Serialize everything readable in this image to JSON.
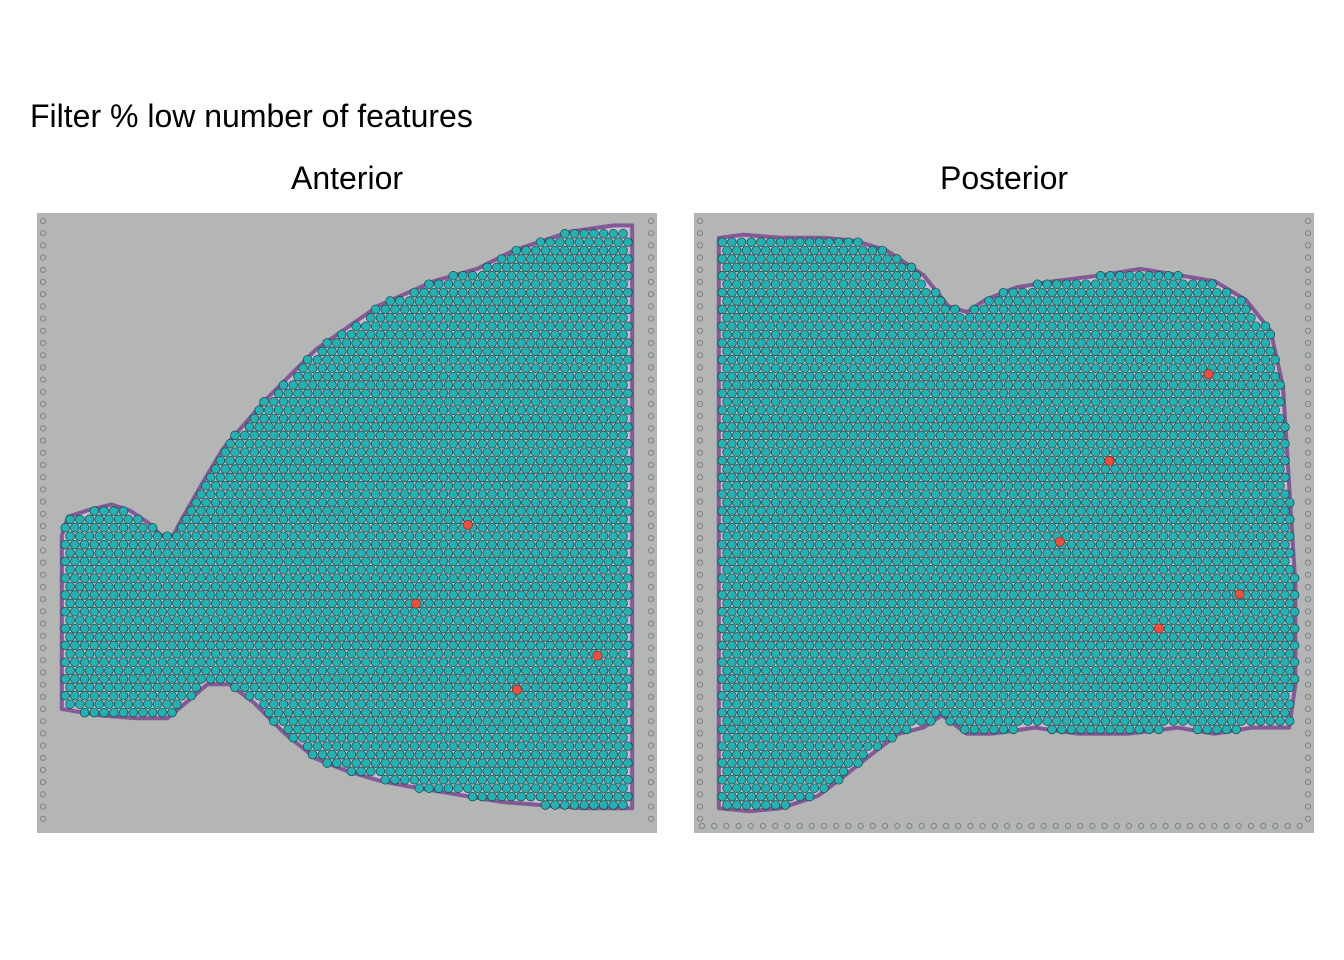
{
  "title": "Filter % low number of features",
  "colors": {
    "background": "#ffffff",
    "tissue_slide": "#b3b6b4",
    "stain_edge": "#7e4f93",
    "spot_kept": "#21b3b3",
    "spot_filtered": "#f24c3d",
    "spot_outline": "#1f3f3f"
  },
  "chart_data": [
    {
      "type": "scatter",
      "title": "Anterior",
      "legend": "none",
      "grid": false,
      "xlim": [
        0,
        100
      ],
      "ylim": [
        0,
        100
      ],
      "series": [
        {
          "values": "kept spots (hexagonal grid over tissue outline)",
          "color": "#21b3b3"
        },
        {
          "color": "#f24c3d",
          "points": [
            {
              "x": 69.5,
              "y": 49.7
            },
            {
              "x": 61.1,
              "y": 37.0
            },
            {
              "x": 90.4,
              "y": 28.6
            },
            {
              "x": 77.4,
              "y": 23.1
            }
          ]
        }
      ],
      "outline": [
        [
          4,
          20
        ],
        [
          10,
          19
        ],
        [
          16,
          18.5
        ],
        [
          21,
          18.5
        ],
        [
          24,
          21
        ],
        [
          27.5,
          24
        ],
        [
          31,
          24
        ],
        [
          35,
          21
        ],
        [
          40,
          16
        ],
        [
          45,
          12
        ],
        [
          50,
          10
        ],
        [
          55,
          8.5
        ],
        [
          60,
          7.5
        ],
        [
          66,
          6.5
        ],
        [
          75,
          5
        ],
        [
          88,
          4
        ],
        [
          96,
          4
        ],
        [
          96,
          98
        ],
        [
          93,
          98
        ],
        [
          86,
          97
        ],
        [
          77,
          94
        ],
        [
          71,
          91
        ],
        [
          64,
          89
        ],
        [
          55,
          85
        ],
        [
          45,
          78
        ],
        [
          37,
          70
        ],
        [
          30,
          62
        ],
        [
          27,
          57
        ],
        [
          23,
          50
        ],
        [
          22,
          48
        ],
        [
          20,
          48
        ],
        [
          18,
          50
        ],
        [
          15,
          52
        ],
        [
          12,
          53
        ],
        [
          8,
          52
        ],
        [
          5,
          51
        ],
        [
          4,
          48
        ],
        [
          4,
          20
        ]
      ]
    },
    {
      "type": "scatter",
      "title": "Posterior",
      "legend": "none",
      "grid": false,
      "xlim": [
        0,
        100
      ],
      "ylim": [
        0,
        100
      ],
      "series": [
        {
          "values": "kept spots (hexagonal grid over tissue outline)",
          "color": "#21b3b3"
        },
        {
          "color": "#f24c3d",
          "points": [
            {
              "x": 83.0,
              "y": 74.0
            },
            {
              "x": 67.0,
              "y": 60.0
            },
            {
              "x": 59.0,
              "y": 47.0
            },
            {
              "x": 88.0,
              "y": 38.5
            },
            {
              "x": 75.0,
              "y": 33.0
            }
          ]
        }
      ],
      "outline": [
        [
          4,
          4
        ],
        [
          9,
          3.5
        ],
        [
          14,
          4
        ],
        [
          20,
          6
        ],
        [
          24,
          9
        ],
        [
          29,
          13
        ],
        [
          33,
          16
        ],
        [
          37,
          17
        ],
        [
          40,
          19
        ],
        [
          44,
          16
        ],
        [
          48,
          16
        ],
        [
          55,
          17
        ],
        [
          62,
          16
        ],
        [
          70,
          16
        ],
        [
          78,
          17
        ],
        [
          84,
          16
        ],
        [
          90,
          17
        ],
        [
          96,
          17
        ],
        [
          97,
          24
        ],
        [
          97,
          40
        ],
        [
          96,
          56
        ],
        [
          95,
          72
        ],
        [
          93,
          81
        ],
        [
          89,
          86
        ],
        [
          84,
          89
        ],
        [
          78,
          90
        ],
        [
          72,
          91
        ],
        [
          66,
          90
        ],
        [
          58,
          89
        ],
        [
          52,
          88
        ],
        [
          47,
          86
        ],
        [
          44,
          84
        ],
        [
          41,
          85
        ],
        [
          37,
          90
        ],
        [
          31,
          94
        ],
        [
          26,
          95.5
        ],
        [
          21,
          96
        ],
        [
          14,
          96
        ],
        [
          8,
          96.5
        ],
        [
          4,
          96
        ],
        [
          4,
          4
        ]
      ]
    }
  ]
}
